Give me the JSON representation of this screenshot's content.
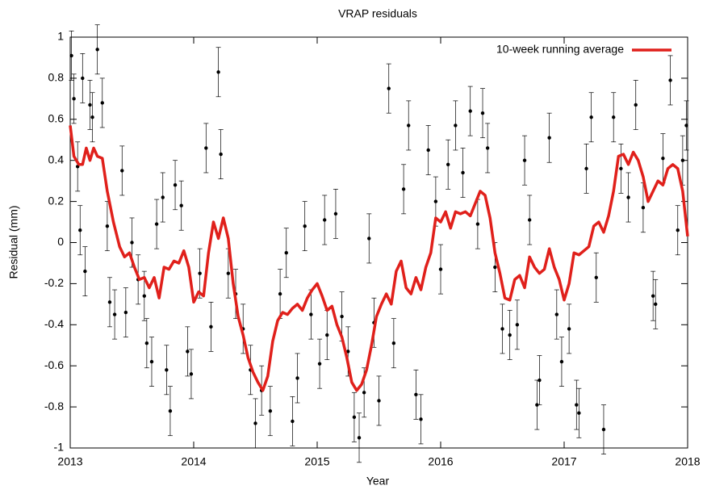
{
  "chart_data": {
    "type": "line",
    "title": "VRAP residuals",
    "x_label": "Year",
    "y_label": "Residual (mm)",
    "xlim": [
      2013,
      2018
    ],
    "xticks": [
      2013,
      2014,
      2015,
      2016,
      2017,
      2018
    ],
    "ylim": [
      -1,
      1
    ],
    "yticks": [
      -1,
      -0.8,
      -0.6,
      -0.4,
      -0.2,
      0,
      0.2,
      0.4,
      0.6,
      0.8,
      1
    ],
    "legend": "top-right",
    "points": {
      "color": "#000000",
      "error": 0.12,
      "x": [
        2013.01,
        2013.03,
        2013.06,
        2013.08,
        2013.1,
        2013.12,
        2013.16,
        2013.18,
        2013.22,
        2013.26,
        2013.3,
        2013.32,
        2013.36,
        2013.42,
        2013.45,
        2013.5,
        2013.55,
        2013.6,
        2013.62,
        2013.66,
        2013.7,
        2013.75,
        2013.78,
        2013.81,
        2013.85,
        2013.9,
        2013.95,
        2013.98,
        2014.05,
        2014.1,
        2014.14,
        2014.2,
        2014.22,
        2014.28,
        2014.34,
        2014.4,
        2014.46,
        2014.5,
        2014.55,
        2014.62,
        2014.7,
        2014.75,
        2014.8,
        2014.84,
        2014.9,
        2014.95,
        2015.02,
        2015.06,
        2015.08,
        2015.15,
        2015.2,
        2015.25,
        2015.3,
        2015.34,
        2015.38,
        2015.42,
        2015.46,
        2015.5,
        2015.58,
        2015.62,
        2015.7,
        2015.74,
        2015.8,
        2015.84,
        2015.9,
        2015.96,
        2016.0,
        2016.06,
        2016.12,
        2016.18,
        2016.24,
        2016.3,
        2016.34,
        2016.38,
        2016.44,
        2016.5,
        2016.56,
        2016.62,
        2016.68,
        2016.72,
        2016.78,
        2016.8,
        2016.88,
        2016.94,
        2016.98,
        2017.04,
        2017.1,
        2017.12,
        2017.18,
        2017.22,
        2017.26,
        2017.32,
        2017.4,
        2017.46,
        2017.52,
        2017.58,
        2017.64,
        2017.72,
        2017.74,
        2017.8,
        2017.86,
        2017.92,
        2017.96,
        2017.99
      ],
      "values": [
        0.91,
        0.7,
        0.37,
        0.06,
        0.8,
        -0.14,
        0.67,
        0.61,
        0.94,
        0.68,
        0.08,
        -0.29,
        -0.35,
        0.35,
        -0.34,
        0,
        -0.18,
        -0.26,
        -0.49,
        -0.58,
        0.09,
        0.22,
        -0.62,
        -0.82,
        0.28,
        0.18,
        -0.53,
        -0.64,
        -0.15,
        0.46,
        -0.41,
        0.83,
        0.43,
        -0.15,
        -0.25,
        -0.42,
        -0.62,
        -0.88,
        -0.72,
        -0.82,
        -0.25,
        -0.05,
        -0.87,
        -0.66,
        0.08,
        -0.35,
        -0.59,
        0.11,
        -0.45,
        0.14,
        -0.36,
        -0.53,
        -0.85,
        -0.95,
        -0.73,
        0.02,
        -0.39,
        -0.77,
        0.75,
        -0.49,
        0.26,
        0.57,
        -0.74,
        -0.86,
        0.45,
        0.2,
        -0.13,
        0.38,
        0.57,
        0.34,
        0.64,
        0.09,
        0.63,
        0.46,
        -0.12,
        -0.42,
        -0.45,
        -0.4,
        0.4,
        0.11,
        -0.79,
        -0.67,
        0.51,
        -0.35,
        -0.58,
        -0.42,
        -0.79,
        -0.83,
        0.36,
        0.61,
        -0.17,
        -0.91,
        0.61,
        0.36,
        0.22,
        0.67,
        0.17,
        -0.26,
        -0.3,
        0.41,
        0.79,
        0.06,
        0.4,
        0.57
      ]
    },
    "series": [
      {
        "name": "10-week running average",
        "color": "#e0201b",
        "x": [
          2013,
          2013.03,
          2013.07,
          2013.1,
          2013.13,
          2013.16,
          2013.19,
          2013.22,
          2013.26,
          2013.3,
          2013.35,
          2013.4,
          2013.44,
          2013.48,
          2013.52,
          2013.56,
          2013.6,
          2013.64,
          2013.68,
          2013.72,
          2013.76,
          2013.8,
          2013.84,
          2013.88,
          2013.92,
          2013.96,
          2014,
          2014.04,
          2014.08,
          2014.12,
          2014.16,
          2014.2,
          2014.24,
          2014.28,
          2014.32,
          2014.36,
          2014.4,
          2014.44,
          2014.48,
          2014.52,
          2014.56,
          2014.6,
          2014.64,
          2014.68,
          2014.72,
          2014.76,
          2014.8,
          2014.84,
          2014.88,
          2014.92,
          2014.96,
          2015,
          2015.04,
          2015.08,
          2015.12,
          2015.16,
          2015.2,
          2015.24,
          2015.28,
          2015.32,
          2015.36,
          2015.4,
          2015.44,
          2015.48,
          2015.52,
          2015.56,
          2015.6,
          2015.64,
          2015.68,
          2015.72,
          2015.76,
          2015.8,
          2015.84,
          2015.88,
          2015.92,
          2015.96,
          2016,
          2016.04,
          2016.08,
          2016.12,
          2016.16,
          2016.2,
          2016.24,
          2016.28,
          2016.32,
          2016.36,
          2016.4,
          2016.44,
          2016.48,
          2016.52,
          2016.56,
          2016.6,
          2016.64,
          2016.68,
          2016.72,
          2016.76,
          2016.8,
          2016.84,
          2016.88,
          2016.92,
          2016.96,
          2017,
          2017.04,
          2017.08,
          2017.12,
          2017.16,
          2017.2,
          2017.24,
          2017.28,
          2017.32,
          2017.36,
          2017.4,
          2017.44,
          2017.48,
          2017.52,
          2017.56,
          2017.6,
          2017.64,
          2017.68,
          2017.72,
          2017.76,
          2017.8,
          2017.84,
          2017.88,
          2017.92,
          2017.96,
          2018
        ],
        "values": [
          0.57,
          0.42,
          0.38,
          0.38,
          0.46,
          0.4,
          0.46,
          0.42,
          0.41,
          0.25,
          0.1,
          -0.02,
          -0.07,
          -0.05,
          -0.12,
          -0.18,
          -0.17,
          -0.22,
          -0.17,
          -0.27,
          -0.12,
          -0.13,
          -0.09,
          -0.1,
          -0.04,
          -0.12,
          -0.29,
          -0.24,
          -0.26,
          -0.05,
          0.1,
          0.02,
          0.12,
          0.02,
          -0.2,
          -0.36,
          -0.45,
          -0.56,
          -0.63,
          -0.68,
          -0.72,
          -0.65,
          -0.48,
          -0.38,
          -0.34,
          -0.35,
          -0.32,
          -0.3,
          -0.33,
          -0.27,
          -0.23,
          -0.2,
          -0.26,
          -0.33,
          -0.31,
          -0.4,
          -0.46,
          -0.56,
          -0.68,
          -0.72,
          -0.69,
          -0.62,
          -0.5,
          -0.36,
          -0.3,
          -0.25,
          -0.3,
          -0.14,
          -0.09,
          -0.22,
          -0.25,
          -0.17,
          -0.23,
          -0.12,
          -0.05,
          0.12,
          0.1,
          0.15,
          0.07,
          0.15,
          0.14,
          0.15,
          0.13,
          0.19,
          0.25,
          0.23,
          0.12,
          -0.05,
          -0.15,
          -0.27,
          -0.28,
          -0.18,
          -0.16,
          -0.22,
          -0.07,
          -0.12,
          -0.15,
          -0.13,
          -0.03,
          -0.12,
          -0.18,
          -0.28,
          -0.2,
          -0.05,
          -0.06,
          -0.04,
          -0.02,
          0.08,
          0.1,
          0.05,
          0.13,
          0.25,
          0.42,
          0.43,
          0.38,
          0.44,
          0.4,
          0.32,
          0.2,
          0.25,
          0.3,
          0.28,
          0.36,
          0.38,
          0.36,
          0.25,
          0.03
        ]
      }
    ]
  }
}
